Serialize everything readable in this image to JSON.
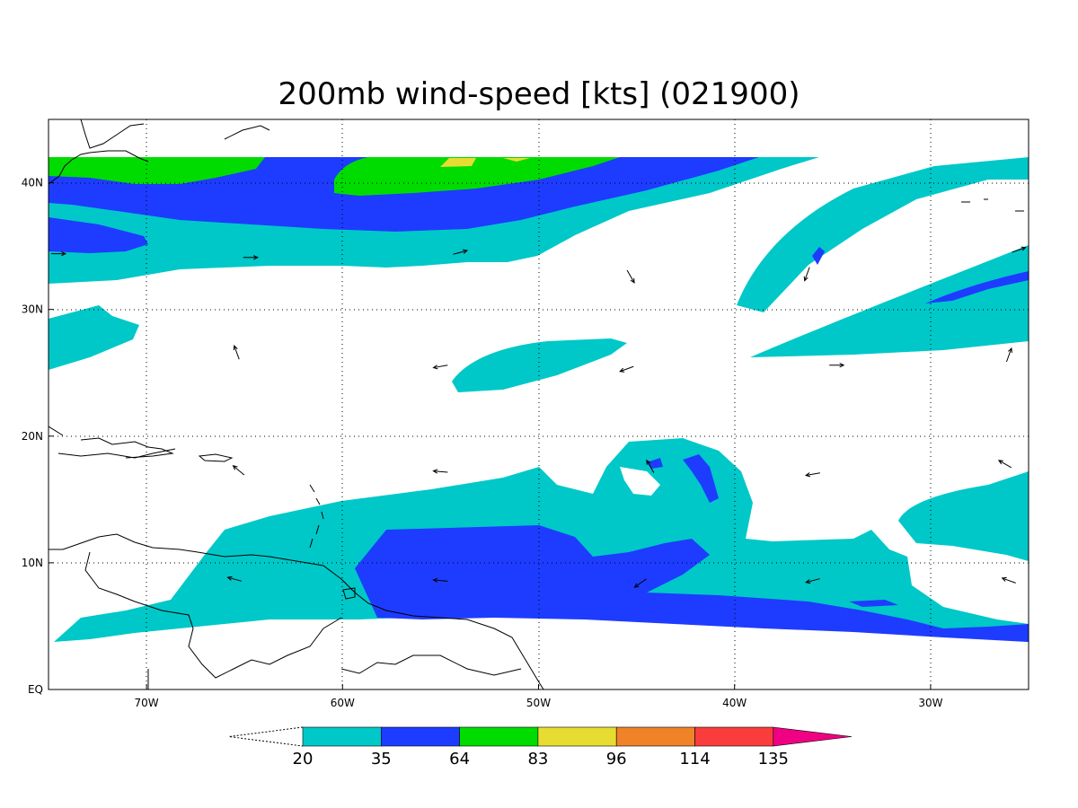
{
  "title": "200mb wind-speed [kts] (021900)",
  "map": {
    "lon_range": [
      -75,
      -25
    ],
    "lat_range": [
      0,
      45
    ],
    "data_lat_max": 42,
    "data_lat_min": 5.5,
    "lon_ticks": [
      {
        "value": -70,
        "label": "70W"
      },
      {
        "value": -60,
        "label": "60W"
      },
      {
        "value": -50,
        "label": "50W"
      },
      {
        "value": -40,
        "label": "40W"
      },
      {
        "value": -30,
        "label": "30W"
      }
    ],
    "lat_ticks": [
      {
        "value": 0,
        "label": "EQ"
      },
      {
        "value": 10,
        "label": "10N"
      },
      {
        "value": 20,
        "label": "20N"
      },
      {
        "value": 30,
        "label": "30N"
      },
      {
        "value": 40,
        "label": "40N"
      }
    ],
    "grid": true
  },
  "colorbar": {
    "levels": [
      "20",
      "35",
      "64",
      "83",
      "96",
      "114",
      "135"
    ],
    "colors": [
      "#00c8c8",
      "#1e3cff",
      "#00dc00",
      "#e6dc32",
      "#f08228",
      "#fa3c3c",
      "#f00082"
    ]
  },
  "wind_vectors": [
    {
      "lon": -74.5,
      "lat": 34.4,
      "dir": 90
    },
    {
      "lon": -64.7,
      "lat": 34.1,
      "dir": 90
    },
    {
      "lon": -54.0,
      "lat": 34.5,
      "dir": 75
    },
    {
      "lon": -45.3,
      "lat": 32.6,
      "dir": 150
    },
    {
      "lon": -36.3,
      "lat": 32.8,
      "dir": 200
    },
    {
      "lon": -25.5,
      "lat": 34.7,
      "dir": 70
    },
    {
      "lon": -65.4,
      "lat": 26.6,
      "dir": 340
    },
    {
      "lon": -55.0,
      "lat": 25.5,
      "dir": 260
    },
    {
      "lon": -45.5,
      "lat": 25.3,
      "dir": 250
    },
    {
      "lon": -34.8,
      "lat": 25.6,
      "dir": 90
    },
    {
      "lon": -26.0,
      "lat": 26.4,
      "dir": 20
    },
    {
      "lon": -65.3,
      "lat": 17.3,
      "dir": 310
    },
    {
      "lon": -55.0,
      "lat": 17.2,
      "dir": 275
    },
    {
      "lon": -44.3,
      "lat": 17.6,
      "dir": 330
    },
    {
      "lon": -36.0,
      "lat": 17.0,
      "dir": 260
    },
    {
      "lon": -26.2,
      "lat": 17.8,
      "dir": 300
    },
    {
      "lon": -65.5,
      "lat": 8.7,
      "dir": 285
    },
    {
      "lon": -55.0,
      "lat": 8.6,
      "dir": 275
    },
    {
      "lon": -44.8,
      "lat": 8.4,
      "dir": 235
    },
    {
      "lon": -36.0,
      "lat": 8.6,
      "dir": 255
    },
    {
      "lon": -26.0,
      "lat": 8.6,
      "dir": 290
    }
  ]
}
